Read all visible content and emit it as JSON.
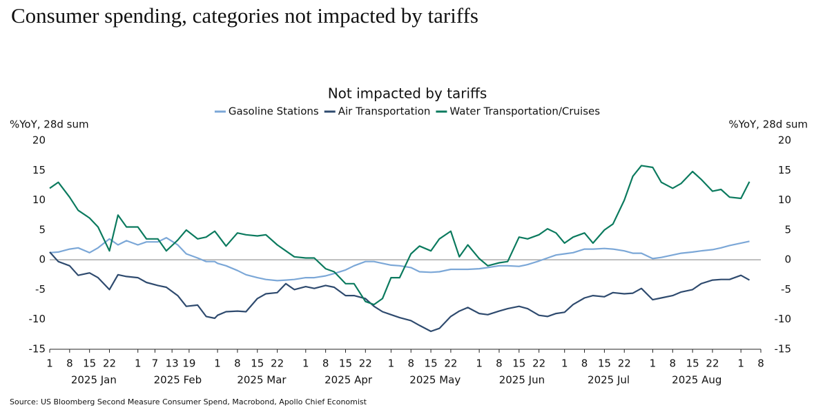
{
  "header": {
    "title": "Consumer spending, categories not impacted by tariffs"
  },
  "chart_data": {
    "type": "line",
    "title": "Not impacted by tariffs",
    "ylabel": "%YoY, 28d sum",
    "y2label": "%YoY, 28d sum",
    "x": [
      "2025-01-01",
      "2025-01-04",
      "2025-01-08",
      "2025-01-11",
      "2025-01-15",
      "2025-01-18",
      "2025-01-22",
      "2025-01-25",
      "2025-01-28",
      "2025-02-01",
      "2025-02-04",
      "2025-02-08",
      "2025-02-11",
      "2025-02-15",
      "2025-02-18",
      "2025-02-22",
      "2025-02-25",
      "2025-02-28",
      "2025-03-01",
      "2025-03-04",
      "2025-03-08",
      "2025-03-11",
      "2025-03-15",
      "2025-03-18",
      "2025-03-22",
      "2025-03-25",
      "2025-03-28",
      "2025-04-01",
      "2025-04-04",
      "2025-04-08",
      "2025-04-11",
      "2025-04-15",
      "2025-04-18",
      "2025-04-22",
      "2025-04-25",
      "2025-04-28",
      "2025-05-01",
      "2025-05-04",
      "2025-05-08",
      "2025-05-11",
      "2025-05-15",
      "2025-05-18",
      "2025-05-22",
      "2025-05-25",
      "2025-05-28",
      "2025-06-01",
      "2025-06-04",
      "2025-06-08",
      "2025-06-11",
      "2025-06-15",
      "2025-06-18",
      "2025-06-22",
      "2025-06-25",
      "2025-06-28",
      "2025-07-01",
      "2025-07-04",
      "2025-07-08",
      "2025-07-11",
      "2025-07-15",
      "2025-07-18",
      "2025-07-22",
      "2025-07-25",
      "2025-07-28",
      "2025-08-01",
      "2025-08-04",
      "2025-08-08",
      "2025-08-11",
      "2025-08-15",
      "2025-08-18",
      "2025-08-22",
      "2025-08-25",
      "2025-08-28",
      "2025-09-01",
      "2025-09-04"
    ],
    "series": [
      {
        "name": "Gasoline Stations",
        "color": "#7ba7d7",
        "values": [
          1.2,
          1.3,
          1.8,
          2,
          1.2,
          2,
          3.5,
          2.5,
          3.2,
          2.5,
          3,
          3,
          3.7,
          2.5,
          1,
          0.3,
          -0.3,
          -0.3,
          -0.6,
          -1,
          -1.8,
          -2.5,
          -3,
          -3.3,
          -3.5,
          -3.4,
          -3.3,
          -3,
          -3,
          -2.7,
          -2.3,
          -1.7,
          -1,
          -0.3,
          -0.3,
          -0.6,
          -0.9,
          -1,
          -1.3,
          -2,
          -2.1,
          -2,
          -1.6,
          -1.6,
          -1.6,
          -1.5,
          -1.3,
          -1,
          -1,
          -1.1,
          -0.8,
          -0.2,
          0.3,
          0.8,
          1,
          1.2,
          1.8,
          1.8,
          1.9,
          1.8,
          1.5,
          1.1,
          1.1,
          0.2,
          0.4,
          0.8,
          1.1,
          1.3,
          1.5,
          1.7,
          2,
          2.4,
          2.8,
          3.1
        ]
      },
      {
        "name": "Air Transportation",
        "color": "#2e4a6e",
        "values": [
          1.3,
          -0.3,
          -1,
          -2.6,
          -2.2,
          -3,
          -5,
          -2.5,
          -2.8,
          -3,
          -3.8,
          -4.3,
          -4.6,
          -6,
          -7.8,
          -7.6,
          -9.5,
          -9.8,
          -9.3,
          -8.7,
          -8.6,
          -8.7,
          -6.5,
          -5.7,
          -5.5,
          -4,
          -5,
          -4.5,
          -4.8,
          -4.3,
          -4.6,
          -6,
          -6,
          -6.5,
          -7.8,
          -8.7,
          -9.2,
          -9.7,
          -10.2,
          -11,
          -12,
          -11.5,
          -9.5,
          -8.6,
          -8,
          -9,
          -9.2,
          -8.6,
          -8.2,
          -7.8,
          -8.2,
          -9.3,
          -9.5,
          -9,
          -8.8,
          -7.5,
          -6.4,
          -6,
          -6.2,
          -5.5,
          -5.7,
          -5.6,
          -4.8,
          -6.7,
          -6.4,
          -6,
          -5.4,
          -5,
          -4,
          -3.4,
          -3.3,
          -3.3,
          -2.6,
          -3.4
        ]
      },
      {
        "name": "Water Transportation/Cruises",
        "color": "#0b7a5e",
        "values": [
          12,
          13,
          10.5,
          8.3,
          7,
          5.5,
          1.5,
          7.5,
          5.5,
          5.5,
          3.5,
          3.5,
          1.5,
          3.3,
          5,
          3.5,
          3.8,
          4.8,
          4.2,
          2.3,
          4.5,
          4.2,
          4,
          4.2,
          2.5,
          1.5,
          0.5,
          0.3,
          0.3,
          -1.5,
          -2,
          -4,
          -4,
          -7,
          -7.5,
          -6.5,
          -3,
          -3,
          1,
          2.3,
          1.5,
          3.5,
          4.8,
          0.5,
          2.5,
          0.2,
          -1,
          -0.5,
          -0.3,
          3.8,
          3.5,
          4.2,
          5.2,
          4.5,
          2.8,
          3.8,
          4.5,
          2.8,
          5,
          6,
          10,
          14,
          15.8,
          15.5,
          13,
          12,
          12.8,
          14.8,
          13.5,
          11.5,
          11.8,
          10.5,
          10.3,
          13.1
        ]
      }
    ],
    "xlim": [
      "2025-01-01",
      "2025-09-08"
    ],
    "xticks": [
      {
        "value": "2025-01-01",
        "label": "1"
      },
      {
        "value": "2025-01-08",
        "label": "8"
      },
      {
        "value": "2025-01-15",
        "label": "15"
      },
      {
        "value": "2025-01-22",
        "label": "22"
      },
      {
        "value": "2025-02-01",
        "label": "1"
      },
      {
        "value": "2025-02-07",
        "label": "7"
      },
      {
        "value": "2025-02-13",
        "label": "13"
      },
      {
        "value": "2025-02-19",
        "label": "19"
      },
      {
        "value": "2025-03-01",
        "label": "1"
      },
      {
        "value": "2025-03-08",
        "label": "8"
      },
      {
        "value": "2025-03-15",
        "label": "15"
      },
      {
        "value": "2025-03-22",
        "label": "22"
      },
      {
        "value": "2025-04-01",
        "label": "1"
      },
      {
        "value": "2025-04-08",
        "label": "8"
      },
      {
        "value": "2025-04-15",
        "label": "15"
      },
      {
        "value": "2025-04-22",
        "label": "22"
      },
      {
        "value": "2025-05-01",
        "label": "1"
      },
      {
        "value": "2025-05-08",
        "label": "8"
      },
      {
        "value": "2025-05-15",
        "label": "15"
      },
      {
        "value": "2025-05-22",
        "label": "22"
      },
      {
        "value": "2025-06-01",
        "label": "1"
      },
      {
        "value": "2025-06-08",
        "label": "8"
      },
      {
        "value": "2025-06-15",
        "label": "15"
      },
      {
        "value": "2025-06-22",
        "label": "22"
      },
      {
        "value": "2025-07-01",
        "label": "1"
      },
      {
        "value": "2025-07-08",
        "label": "8"
      },
      {
        "value": "2025-07-15",
        "label": "15"
      },
      {
        "value": "2025-07-22",
        "label": "22"
      },
      {
        "value": "2025-08-01",
        "label": "1"
      },
      {
        "value": "2025-08-08",
        "label": "8"
      },
      {
        "value": "2025-08-15",
        "label": "15"
      },
      {
        "value": "2025-08-22",
        "label": "22"
      },
      {
        "value": "2025-09-01",
        "label": "1"
      },
      {
        "value": "2025-09-08",
        "label": "8"
      }
    ],
    "xgroups": [
      "2025 Jan",
      "2025 Feb",
      "2025 Mar",
      "2025 Apr",
      "2025 May",
      "2025 Jun",
      "2025 Jul",
      "2025 Aug"
    ],
    "ylim": [
      -15,
      20
    ],
    "yticks": [
      -15,
      -10,
      -5,
      0,
      5,
      10,
      15,
      20
    ],
    "y2lim": [
      -15,
      20
    ],
    "y2ticks": [
      -15,
      -10,
      -5,
      0,
      5,
      10,
      15,
      20
    ],
    "grid": false,
    "zero_line": true,
    "legend": "top"
  },
  "footer": {
    "source": "Source: US Bloomberg Second Measure Consumer Spend, Macrobond, Apollo Chief Economist"
  }
}
